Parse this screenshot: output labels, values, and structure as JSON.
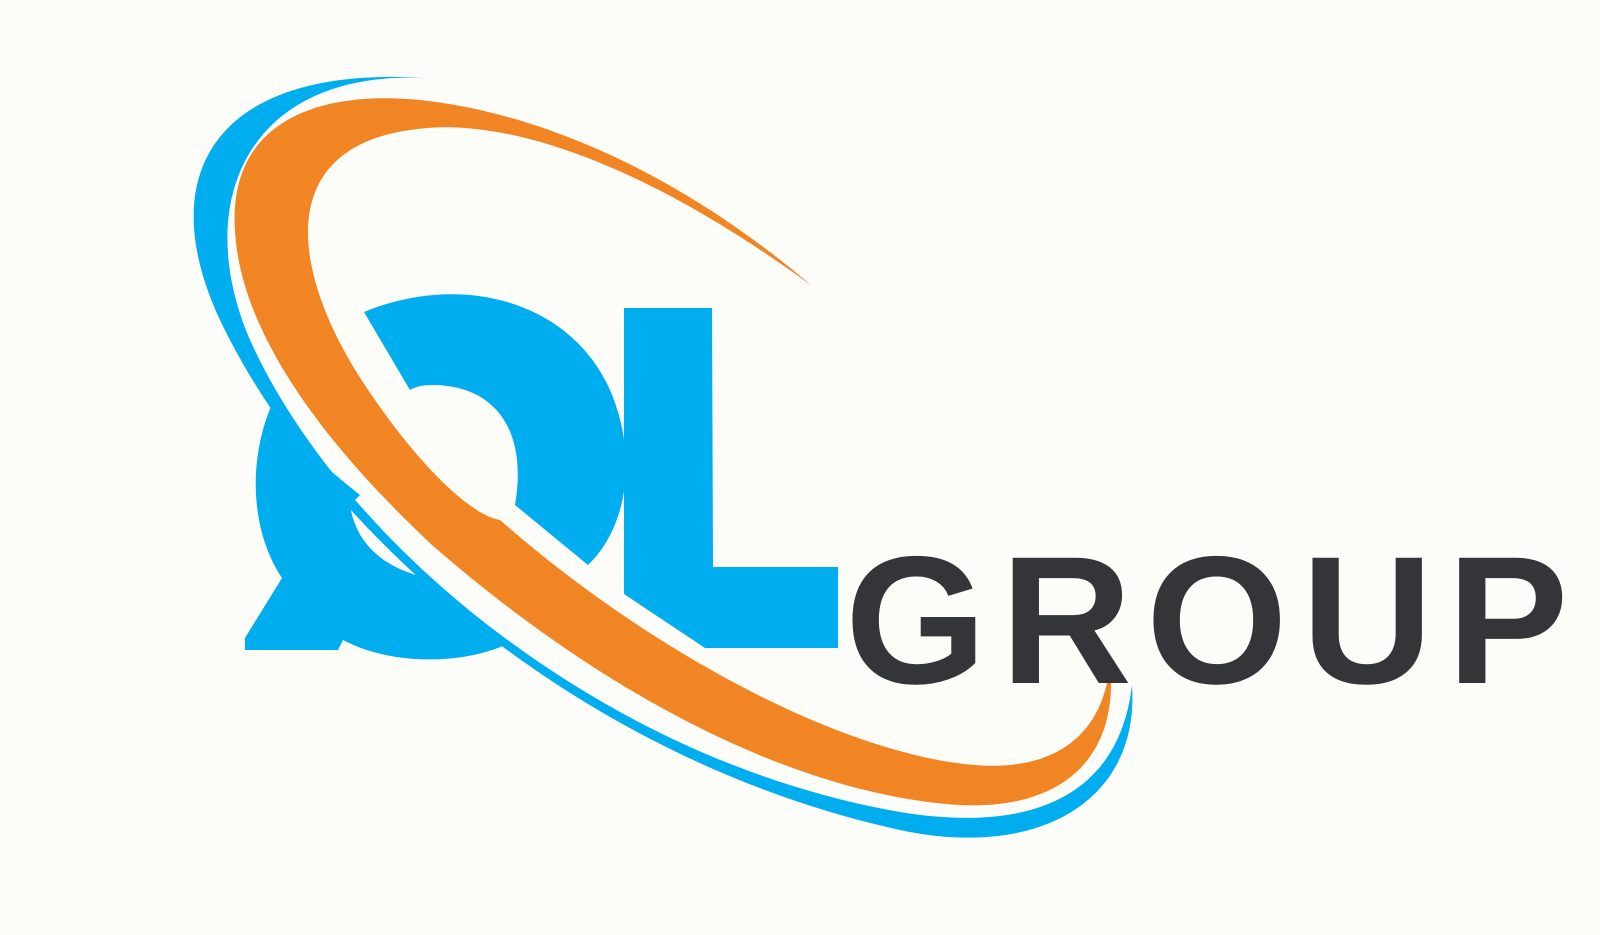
{
  "logo": {
    "monogram": "QL",
    "wordmark": "GROUP",
    "colors": {
      "background": "#fcfcf9",
      "blue": "#00adee",
      "orange": "#f28523",
      "dark": "#343538"
    }
  }
}
